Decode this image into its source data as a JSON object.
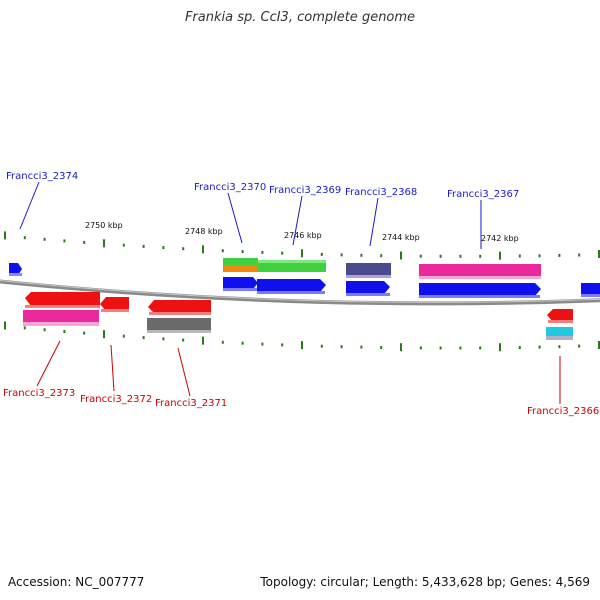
{
  "header": {
    "title": "Frankia sp. CcI3, complete genome"
  },
  "footer": {
    "accession": "Accession: NC_007777",
    "summary": "Topology: circular; Length: 5,433,628 bp; Genes: 4,569"
  },
  "scale": {
    "labels": [
      "2750 kbp",
      "2748 kbp",
      "2746 kbp",
      "2744 kbp",
      "2742 kbp"
    ]
  },
  "genes_top": [
    "Francci3_2374",
    "Francci3_2370",
    "Francci3_2369",
    "Francci3_2368",
    "Francci3_2367"
  ],
  "genes_bottom": [
    "Francci3_2373",
    "Francci3_2372",
    "Francci3_2371",
    "Francci3_2366"
  ],
  "colors": {
    "forward_label": "#1a1ad0",
    "reverse_label": "#cc0000",
    "tick": "#2a7a1a",
    "backbone": "#808080",
    "cds_forward": "#1010ee",
    "cds_reverse": "#ee1111",
    "green": "#3fcf3f",
    "orange": "#ee8a10",
    "magenta": "#ea2a9c",
    "indigo": "#4a4a8e",
    "gray": "#6a6a6a",
    "cyan": "#22c8e0"
  }
}
